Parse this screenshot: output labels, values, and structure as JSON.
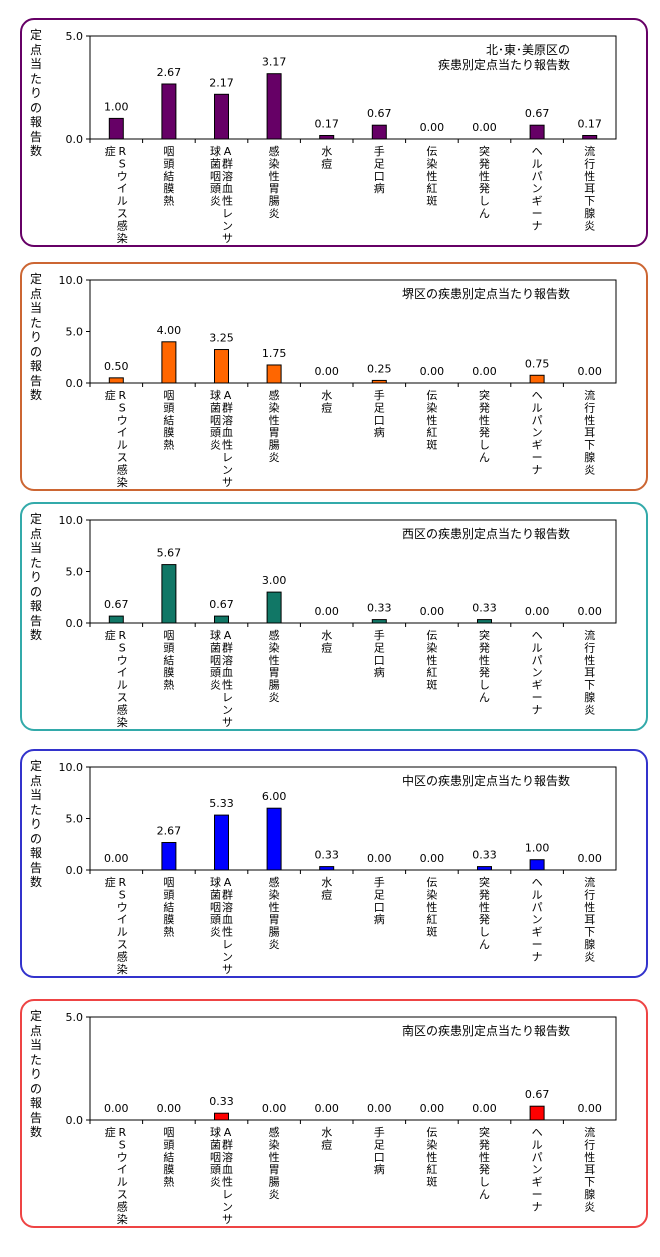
{
  "chart_data": [
    {
      "type": "bar",
      "title": "北･東･美原区の\n疾患別定点当たり報告数",
      "ylabel": "定点当たりの報告数",
      "ylim": [
        0,
        5
      ],
      "yticks": [
        "0.0",
        "5.0"
      ],
      "bar_color": "#660066",
      "border_color": "#660066",
      "grid": false,
      "legend": "none",
      "categories": [
        "RSウイルス感染症",
        "咽頭結膜熱",
        "A群溶血性レンサ球菌咽頭炎",
        "感染性胃腸炎",
        "水痘",
        "手足口病",
        "伝染性紅斑",
        "突発性発しん",
        "ヘルパンギーナ",
        "流行性耳下腺炎"
      ],
      "values": [
        1.0,
        2.67,
        2.17,
        3.17,
        0.17,
        0.67,
        0.0,
        0.0,
        0.67,
        0.17
      ],
      "value_labels": [
        "1.00",
        "2.67",
        "2.17",
        "3.17",
        "0.17",
        "0.67",
        "0.00",
        "0.00",
        "0.67",
        "0.17"
      ]
    },
    {
      "type": "bar",
      "title": "堺区の疾患別定点当たり報告数",
      "ylabel": "定点当たりの報告数",
      "ylim": [
        0,
        10
      ],
      "yticks": [
        "0.0",
        "5.0",
        "10.0"
      ],
      "bar_color": "#ff6600",
      "border_color": "#cc6633",
      "grid": false,
      "legend": "none",
      "categories": [
        "RSウイルス感染症",
        "咽頭結膜熱",
        "A群溶血性レンサ球菌咽頭炎",
        "感染性胃腸炎",
        "水痘",
        "手足口病",
        "伝染性紅斑",
        "突発性発しん",
        "ヘルパンギーナ",
        "流行性耳下腺炎"
      ],
      "values": [
        0.5,
        4.0,
        3.25,
        1.75,
        0.0,
        0.25,
        0.0,
        0.0,
        0.75,
        0.0
      ],
      "value_labels": [
        "0.50",
        "4.00",
        "3.25",
        "1.75",
        "0.00",
        "0.25",
        "0.00",
        "0.00",
        "0.75",
        "0.00"
      ]
    },
    {
      "type": "bar",
      "title": "西区の疾患別定点当たり報告数",
      "ylabel": "定点当たりの報告数",
      "ylim": [
        0,
        10
      ],
      "yticks": [
        "0.0",
        "5.0",
        "10.0"
      ],
      "bar_color": "#117766",
      "border_color": "#33aaaa",
      "grid": false,
      "legend": "none",
      "categories": [
        "RSウイルス感染症",
        "咽頭結膜熱",
        "A群溶血性レンサ球菌咽頭炎",
        "感染性胃腸炎",
        "水痘",
        "手足口病",
        "伝染性紅斑",
        "突発性発しん",
        "ヘルパンギーナ",
        "流行性耳下腺炎"
      ],
      "values": [
        0.67,
        5.67,
        0.67,
        3.0,
        0.0,
        0.33,
        0.0,
        0.33,
        0.0,
        0.0
      ],
      "value_labels": [
        "0.67",
        "5.67",
        "0.67",
        "3.00",
        "0.00",
        "0.33",
        "0.00",
        "0.33",
        "0.00",
        "0.00"
      ]
    },
    {
      "type": "bar",
      "title": "中区の疾患別定点当たり報告数",
      "ylabel": "定点当たりの報告数",
      "ylim": [
        0,
        10
      ],
      "yticks": [
        "0.0",
        "5.0",
        "10.0"
      ],
      "bar_color": "#0000ff",
      "border_color": "#3333cc",
      "grid": false,
      "legend": "none",
      "categories": [
        "RSウイルス感染症",
        "咽頭結膜熱",
        "A群溶血性レンサ球菌咽頭炎",
        "感染性胃腸炎",
        "水痘",
        "手足口病",
        "伝染性紅斑",
        "突発性発しん",
        "ヘルパンギーナ",
        "流行性耳下腺炎"
      ],
      "values": [
        0.0,
        2.67,
        5.33,
        6.0,
        0.33,
        0.0,
        0.0,
        0.33,
        1.0,
        0.0
      ],
      "value_labels": [
        "0.00",
        "2.67",
        "5.33",
        "6.00",
        "0.33",
        "0.00",
        "0.00",
        "0.33",
        "1.00",
        "0.00"
      ]
    },
    {
      "type": "bar",
      "title": "南区の疾患別定点当たり報告数",
      "ylabel": "定点当たりの報告数",
      "ylim": [
        0,
        5
      ],
      "yticks": [
        "0.0",
        "5.0"
      ],
      "bar_color": "#ff0000",
      "border_color": "#ee4444",
      "grid": false,
      "legend": "none",
      "categories": [
        "RSウイルス感染症",
        "咽頭結膜熱",
        "A群溶血性レンサ球菌咽頭炎",
        "感染性胃腸炎",
        "水痘",
        "手足口病",
        "伝染性紅斑",
        "突発性発しん",
        "ヘルパンギーナ",
        "流行性耳下腺炎"
      ],
      "values": [
        0.0,
        0.0,
        0.33,
        0.0,
        0.0,
        0.0,
        0.0,
        0.0,
        0.67,
        0.0
      ],
      "value_labels": [
        "0.00",
        "0.00",
        "0.33",
        "0.00",
        "0.00",
        "0.00",
        "0.00",
        "0.00",
        "0.67",
        "0.00"
      ]
    }
  ]
}
